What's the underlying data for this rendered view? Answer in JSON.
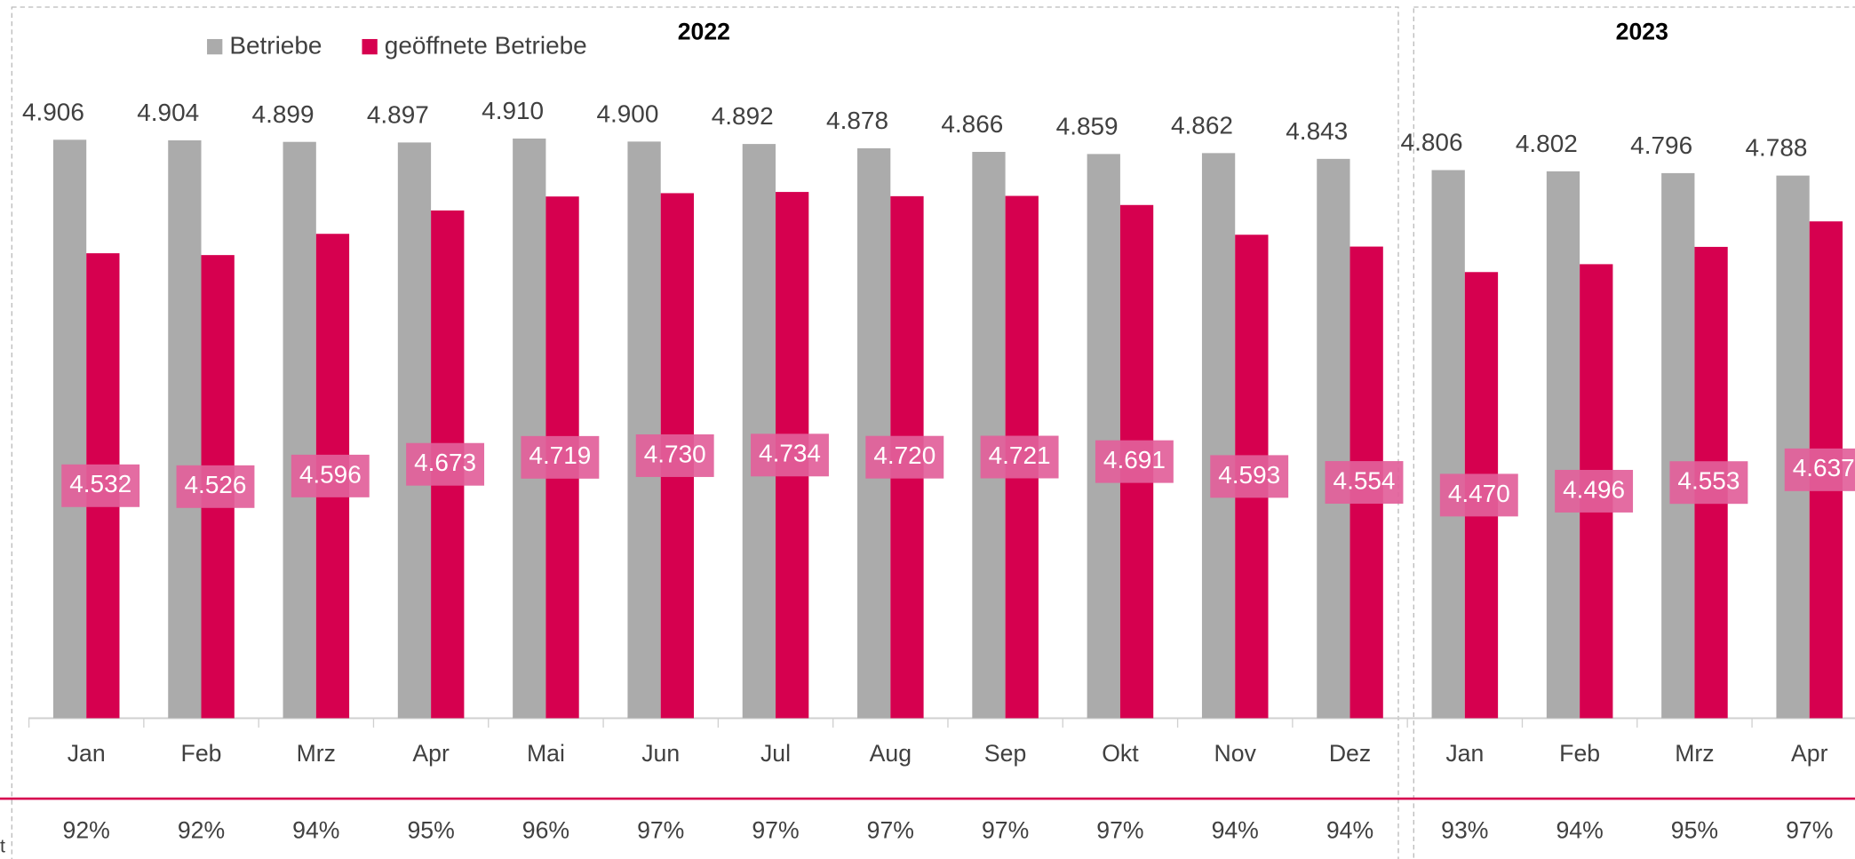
{
  "chart_data": {
    "type": "bar",
    "groups": [
      {
        "name": "2022",
        "categories": [
          "Jan",
          "Feb",
          "Mrz",
          "Apr",
          "Mai",
          "Jun",
          "Jul",
          "Aug",
          "Sep",
          "Okt",
          "Nov",
          "Dez"
        ]
      },
      {
        "name": "2023",
        "categories": [
          "Jan",
          "Feb",
          "Mrz",
          "Apr"
        ]
      }
    ],
    "series": [
      {
        "name": "Betriebe",
        "color": "#ababab",
        "values": [
          4906,
          4904,
          4899,
          4897,
          4910,
          4900,
          4892,
          4878,
          4866,
          4859,
          4862,
          4843,
          4806,
          4802,
          4796,
          4788
        ],
        "value_labels": [
          "4.906",
          "4.904",
          "4.899",
          "4.897",
          "4.910",
          "4.900",
          "4.892",
          "4.878",
          "4.866",
          "4.859",
          "4.862",
          "4.843",
          "4.806",
          "4.802",
          "4.796",
          "4.788"
        ]
      },
      {
        "name": "geöffnete Betriebe",
        "color": "#d6004f",
        "values": [
          4532,
          4526,
          4596,
          4673,
          4719,
          4730,
          4734,
          4720,
          4721,
          4691,
          4593,
          4554,
          4470,
          4496,
          4553,
          4637
        ],
        "value_labels": [
          "4.532",
          "4.526",
          "4.596",
          "4.673",
          "4.719",
          "4.730",
          "4.734",
          "4.720",
          "4.721",
          "4.691",
          "4.593",
          "4.554",
          "4.470",
          "4.496",
          "4.553",
          "4.637"
        ]
      }
    ],
    "shares": {
      "values": [
        92,
        92,
        94,
        95,
        96,
        97,
        97,
        97,
        97,
        97,
        94,
        94,
        93,
        94,
        95,
        97
      ],
      "value_labels": [
        "92%",
        "92%",
        "94%",
        "95%",
        "96%",
        "97%",
        "97%",
        "97%",
        "97%",
        "97%",
        "94%",
        "94%",
        "93%",
        "94%",
        "95%",
        "97%"
      ]
    },
    "ylim": [
      3000,
      5000
    ],
    "legend": "top-left",
    "footnote": "t"
  }
}
